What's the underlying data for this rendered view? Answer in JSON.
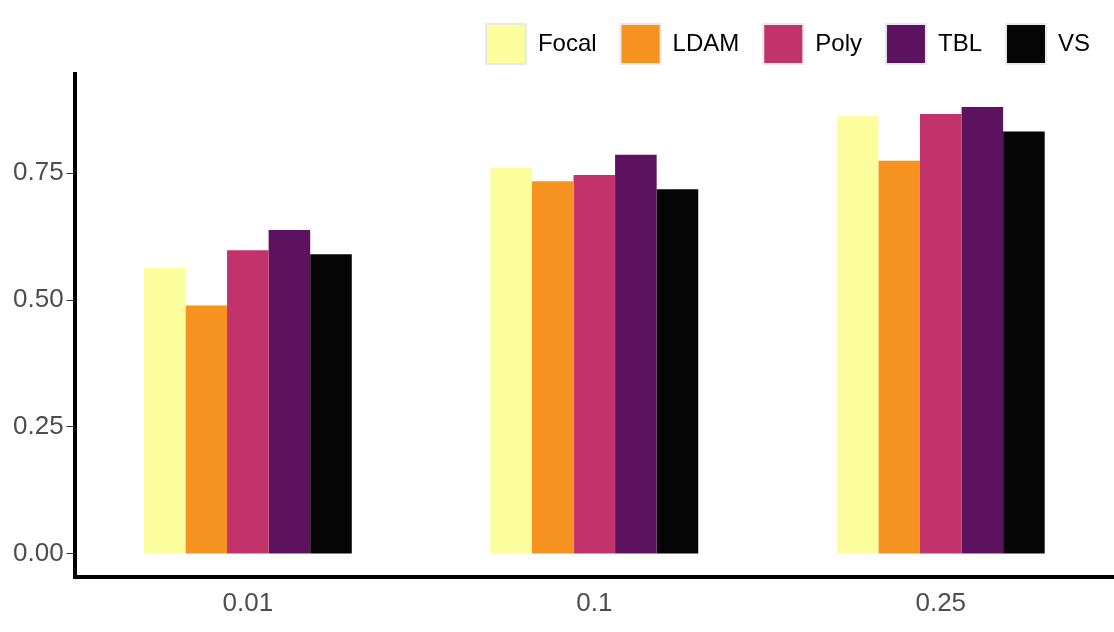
{
  "chart_data": {
    "type": "bar",
    "categories": [
      "0.01",
      "0.1",
      "0.25"
    ],
    "series": [
      {
        "name": "Focal",
        "color": "#fcfd9d",
        "values": [
          0.563,
          0.76,
          0.862
        ]
      },
      {
        "name": "LDAM",
        "color": "#f6921f",
        "values": [
          0.489,
          0.734,
          0.774
        ]
      },
      {
        "name": "Poly",
        "color": "#c2336b",
        "values": [
          0.598,
          0.746,
          0.866
        ]
      },
      {
        "name": "TBL",
        "color": "#5d1260",
        "values": [
          0.638,
          0.786,
          0.88
        ]
      },
      {
        "name": "VS",
        "color": "#050505",
        "values": [
          0.59,
          0.718,
          0.832
        ]
      }
    ],
    "ylim": [
      -0.045,
      0.945
    ],
    "yticks": [
      {
        "value": 0,
        "label": "0.00"
      },
      {
        "value": 0.25,
        "label": "0.25"
      },
      {
        "value": 0.5,
        "label": "0.50"
      },
      {
        "value": 0.75,
        "label": "0.75"
      }
    ],
    "grid": false,
    "legend": "top"
  }
}
